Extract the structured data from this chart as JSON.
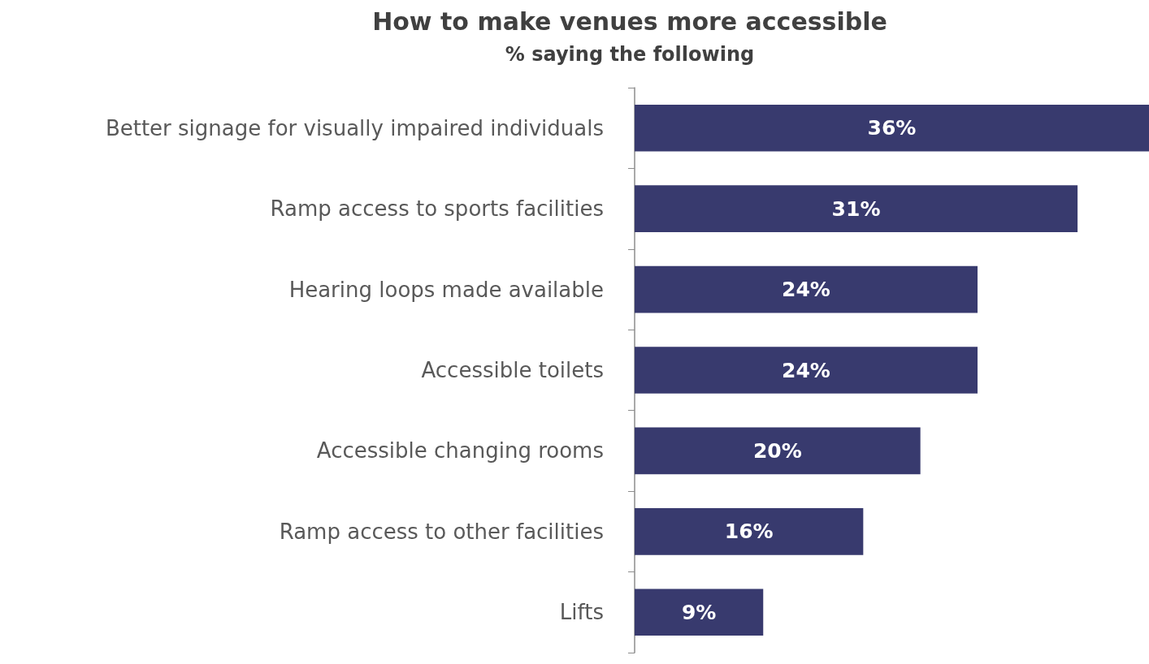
{
  "chart_data": {
    "type": "bar",
    "orientation": "horizontal",
    "title": "How to make venues more accessible",
    "subtitle": "% saying the following",
    "categories": [
      "Better signage for visually impaired individuals",
      "Ramp access to sports facilities",
      "Hearing loops made available",
      "Accessible toilets",
      "Accessible changing rooms",
      "Ramp access to other facilities",
      "Lifts"
    ],
    "values": [
      36,
      31,
      24,
      24,
      20,
      16,
      9
    ],
    "value_labels": [
      "36%",
      "31%",
      "24%",
      "24%",
      "20%",
      "16%",
      "9%"
    ],
    "color": "#383a6e"
  }
}
